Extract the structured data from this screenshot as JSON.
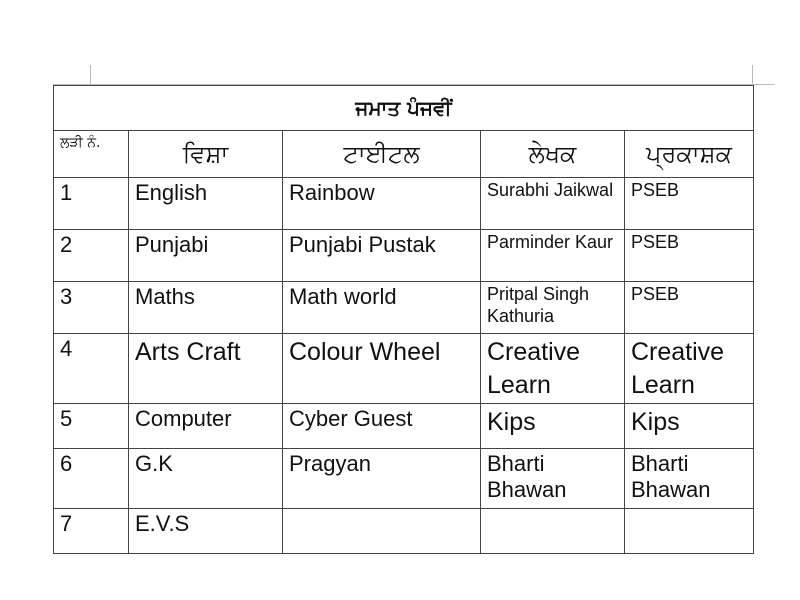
{
  "title": "ਜਮਾਤ ਪੰਜਵੀਂ",
  "headers": [
    "ਲੜੀ ਨੰ.",
    "ਵਿਸ਼ਾ",
    "ਟਾਈਟਲ",
    "ਲੇਖਕ",
    "ਪ੍ਰਕਾਸ਼ਕ"
  ],
  "rows": [
    [
      "1",
      "English",
      "Rainbow",
      "Surabhi Jaikwal",
      "PSEB"
    ],
    [
      "2",
      "Punjabi",
      "Punjabi Pustak",
      "Parminder Kaur",
      "PSEB"
    ],
    [
      "3",
      "Maths",
      "Math world",
      "Pritpal Singh Kathuria",
      "PSEB"
    ],
    [
      "4",
      "Arts Craft",
      "Colour Wheel",
      "Creative Learn",
      "Creative Learn"
    ],
    [
      "5",
      "Computer",
      "Cyber Guest",
      "Kips",
      "Kips"
    ],
    [
      "6",
      "G.K",
      "Pragyan",
      "Bharti Bhawan",
      "Bharti Bhawan"
    ],
    [
      "7",
      "E.V.S",
      "",
      "",
      ""
    ]
  ]
}
